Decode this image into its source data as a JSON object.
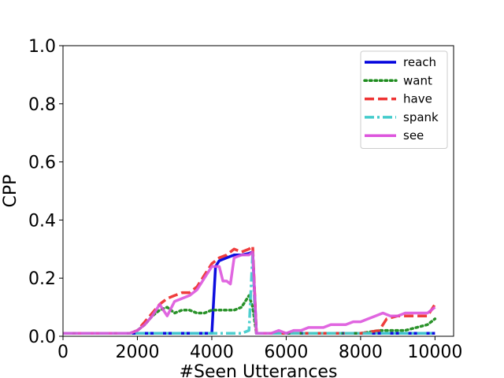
{
  "chart_data": {
    "type": "line",
    "title": "",
    "xlabel": "#Seen Utterances",
    "ylabel": "CPP",
    "xlim": [
      0,
      10500
    ],
    "ylim": [
      0,
      1.0
    ],
    "xticks": [
      0,
      2000,
      4000,
      6000,
      8000,
      10000
    ],
    "xtick_labels": [
      "0",
      "2000",
      "4000",
      "6000",
      "8000",
      "10000"
    ],
    "yticks": [
      0.0,
      0.2,
      0.4,
      0.6,
      0.8,
      1.0
    ],
    "ytick_labels": [
      "0.0",
      "0.2",
      "0.4",
      "0.6",
      "0.8",
      "1.0"
    ],
    "grid": false,
    "legend_position": "top-right",
    "series": [
      {
        "name": "reach",
        "color": "#0000dd",
        "style": "solid",
        "points": [
          [
            0,
            0.01
          ],
          [
            4000,
            0.01
          ],
          [
            4100,
            0.24
          ],
          [
            4200,
            0.26
          ],
          [
            4400,
            0.27
          ],
          [
            4600,
            0.28
          ],
          [
            4800,
            0.28
          ],
          [
            5000,
            0.285
          ],
          [
            5100,
            0.29
          ],
          [
            5200,
            0.01
          ],
          [
            6000,
            0.01
          ],
          [
            8000,
            0.01
          ],
          [
            10000,
            0.01
          ]
        ]
      },
      {
        "name": "want",
        "color": "#1e8c1e",
        "style": "dotted",
        "points": [
          [
            0,
            0.01
          ],
          [
            1800,
            0.01
          ],
          [
            2000,
            0.02
          ],
          [
            2200,
            0.04
          ],
          [
            2400,
            0.07
          ],
          [
            2600,
            0.09
          ],
          [
            2800,
            0.1
          ],
          [
            3000,
            0.08
          ],
          [
            3200,
            0.09
          ],
          [
            3400,
            0.09
          ],
          [
            3600,
            0.08
          ],
          [
            3800,
            0.08
          ],
          [
            4000,
            0.09
          ],
          [
            4200,
            0.09
          ],
          [
            4400,
            0.09
          ],
          [
            4600,
            0.09
          ],
          [
            4800,
            0.1
          ],
          [
            5000,
            0.14
          ],
          [
            5100,
            0.1
          ],
          [
            5200,
            0.01
          ],
          [
            6000,
            0.01
          ],
          [
            7000,
            0.01
          ],
          [
            8000,
            0.01
          ],
          [
            8500,
            0.02
          ],
          [
            8800,
            0.02
          ],
          [
            9000,
            0.02
          ],
          [
            9200,
            0.02
          ],
          [
            9500,
            0.03
          ],
          [
            9800,
            0.04
          ],
          [
            10000,
            0.06
          ]
        ]
      },
      {
        "name": "have",
        "color": "#ee3333",
        "style": "dashed",
        "points": [
          [
            0,
            0.01
          ],
          [
            1800,
            0.01
          ],
          [
            2000,
            0.02
          ],
          [
            2200,
            0.05
          ],
          [
            2400,
            0.08
          ],
          [
            2600,
            0.11
          ],
          [
            2800,
            0.13
          ],
          [
            3000,
            0.14
          ],
          [
            3200,
            0.15
          ],
          [
            3400,
            0.15
          ],
          [
            3600,
            0.17
          ],
          [
            3800,
            0.21
          ],
          [
            4000,
            0.25
          ],
          [
            4200,
            0.27
          ],
          [
            4400,
            0.28
          ],
          [
            4600,
            0.3
          ],
          [
            4800,
            0.29
          ],
          [
            5000,
            0.3
          ],
          [
            5100,
            0.31
          ],
          [
            5200,
            0.01
          ],
          [
            6000,
            0.01
          ],
          [
            8000,
            0.01
          ],
          [
            8500,
            0.02
          ],
          [
            8700,
            0.06
          ],
          [
            9000,
            0.07
          ],
          [
            9500,
            0.07
          ],
          [
            9800,
            0.07
          ],
          [
            10000,
            0.11
          ]
        ]
      },
      {
        "name": "spank",
        "color": "#44cccc",
        "style": "dashdot",
        "points": [
          [
            0,
            0.01
          ],
          [
            4000,
            0.01
          ],
          [
            4800,
            0.01
          ],
          [
            5000,
            0.02
          ],
          [
            5100,
            0.29
          ],
          [
            5150,
            0.1
          ],
          [
            5200,
            0.01
          ],
          [
            6000,
            0.01
          ],
          [
            8000,
            0.01
          ],
          [
            10000,
            0.01
          ]
        ]
      },
      {
        "name": "see",
        "color": "#dd55dd",
        "style": "solid",
        "points": [
          [
            0,
            0.01
          ],
          [
            1800,
            0.01
          ],
          [
            2000,
            0.02
          ],
          [
            2200,
            0.04
          ],
          [
            2400,
            0.07
          ],
          [
            2600,
            0.11
          ],
          [
            2700,
            0.09
          ],
          [
            2800,
            0.07
          ],
          [
            3000,
            0.12
          ],
          [
            3200,
            0.13
          ],
          [
            3400,
            0.14
          ],
          [
            3600,
            0.16
          ],
          [
            3800,
            0.2
          ],
          [
            4000,
            0.24
          ],
          [
            4200,
            0.24
          ],
          [
            4300,
            0.19
          ],
          [
            4400,
            0.19
          ],
          [
            4500,
            0.18
          ],
          [
            4600,
            0.27
          ],
          [
            4800,
            0.28
          ],
          [
            5000,
            0.28
          ],
          [
            5100,
            0.29
          ],
          [
            5200,
            0.01
          ],
          [
            5400,
            0.01
          ],
          [
            5600,
            0.01
          ],
          [
            5800,
            0.02
          ],
          [
            6000,
            0.01
          ],
          [
            6200,
            0.02
          ],
          [
            6400,
            0.02
          ],
          [
            6600,
            0.03
          ],
          [
            6800,
            0.03
          ],
          [
            7000,
            0.03
          ],
          [
            7200,
            0.04
          ],
          [
            7400,
            0.04
          ],
          [
            7600,
            0.04
          ],
          [
            7800,
            0.05
          ],
          [
            8000,
            0.05
          ],
          [
            8200,
            0.06
          ],
          [
            8400,
            0.07
          ],
          [
            8600,
            0.08
          ],
          [
            8800,
            0.07
          ],
          [
            9000,
            0.07
          ],
          [
            9200,
            0.08
          ],
          [
            9400,
            0.08
          ],
          [
            9600,
            0.08
          ],
          [
            9800,
            0.08
          ],
          [
            10000,
            0.1
          ]
        ]
      }
    ]
  }
}
